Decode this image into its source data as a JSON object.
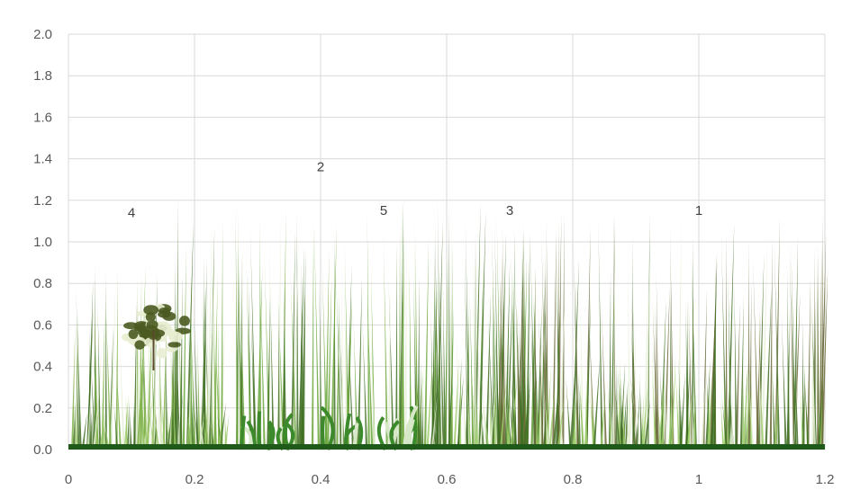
{
  "chart_data": {
    "type": "scatter",
    "title": "",
    "xlabel": "",
    "ylabel": "",
    "xlim": [
      0,
      1.2
    ],
    "ylim": [
      0,
      2.0
    ],
    "grid": true,
    "x_ticks": [
      "0",
      "0.2",
      "0.4",
      "0.6",
      "0.8",
      "1",
      "1.2"
    ],
    "x_tick_values": [
      0,
      0.2,
      0.4,
      0.6,
      0.8,
      1.0,
      1.2
    ],
    "y_ticks": [
      "0.0",
      "0.2",
      "0.4",
      "0.6",
      "0.8",
      "1.0",
      "1.2",
      "1.4",
      "1.6",
      "1.8",
      "2.0"
    ],
    "y_tick_values": [
      0,
      0.2,
      0.4,
      0.6,
      0.8,
      1.0,
      1.2,
      1.4,
      1.6,
      1.8,
      2.0
    ],
    "labels": [
      {
        "text": "4",
        "x": 0.1,
        "y": 1.12
      },
      {
        "text": "2",
        "x": 0.4,
        "y": 1.34
      },
      {
        "text": "5",
        "x": 0.5,
        "y": 1.13
      },
      {
        "text": "3",
        "x": 0.7,
        "y": 1.13
      },
      {
        "text": "1",
        "x": 1.0,
        "y": 1.13
      }
    ],
    "plantings": [
      {
        "name": "grass-back-left",
        "x0": 0.0,
        "x1": 0.25,
        "height": 0.9,
        "color": "#7fb24a"
      },
      {
        "name": "grass-tall-center",
        "x0": 0.17,
        "x1": 0.6,
        "height": 1.22,
        "color": "#6aa63a"
      },
      {
        "name": "grass-center-right",
        "x0": 0.55,
        "x1": 0.75,
        "height": 1.2,
        "color": "#5f9a35"
      },
      {
        "name": "grass-dark-right",
        "x0": 0.68,
        "x1": 1.2,
        "height": 1.18,
        "color": "#6b6a3a"
      },
      {
        "name": "grass-low-left",
        "x0": 0.0,
        "x1": 0.25,
        "height": 0.3,
        "color": "#9cc96a"
      },
      {
        "name": "grass-low-right",
        "x0": 0.55,
        "x1": 1.2,
        "height": 0.45,
        "color": "#9ccc6a"
      },
      {
        "name": "fern-front",
        "x0": 0.26,
        "x1": 0.56,
        "height": 0.2,
        "color": "#3d8a2c"
      },
      {
        "name": "shrub",
        "x0": 0.07,
        "x1": 0.2,
        "height": 0.8,
        "color": "#4a5a20"
      }
    ]
  }
}
